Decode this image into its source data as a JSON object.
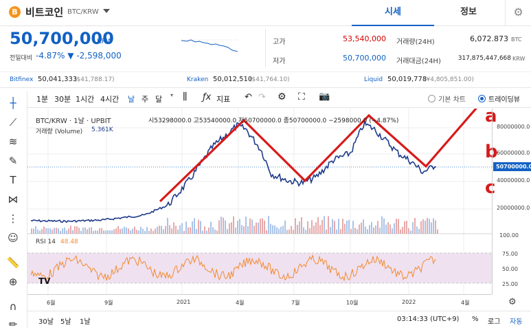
{
  "header": {
    "coin_icon_letter": "B",
    "coin_name": "비트코인",
    "coin_code": "BTC/KRW",
    "tabs": [
      "시세",
      "정보"
    ]
  },
  "price": {
    "value": "50,700,000",
    "unit": "KRW",
    "change_label": "전일대비",
    "change_pct": "-4.87%",
    "change_abs": "▼ -2,598,000"
  },
  "stats": {
    "high_label": "고가",
    "high": "53,540,000",
    "low_label": "저가",
    "low": "50,700,000",
    "vol_label": "거래량(24H)",
    "vol": "6,072.873",
    "vol_unit": "BTC",
    "amt_label": "거래대금(24H)",
    "amt": "317,875,447,668",
    "amt_unit": "KRW"
  },
  "exchanges": [
    {
      "name": "Bitfinex",
      "value": "50,041,333",
      "sub": "($41,788.17)"
    },
    {
      "name": "Kraken",
      "value": "50,012,510",
      "sub": "($41,764.10)"
    },
    {
      "name": "Liquid",
      "value": "50,019,778",
      "sub": "(¥4,805,851.00)"
    }
  ],
  "toolbar": {
    "intervals": [
      "1분",
      "30분",
      "1시간",
      "4시간",
      "날",
      "주",
      "달"
    ],
    "indicator_label": "지표",
    "basic_chart": "기본 차트",
    "tradingview": "트레이딩뷰"
  },
  "legend": {
    "symbol": "BTC/KRW · 1날 · UPBIT",
    "ohlc": "시53298000.0 고53540000.0 저50700000.0 종50700000.0 −2598000.0 (−4.87%)",
    "volume": "거래량 (Volume)",
    "volume_val": "5.361K",
    "rsi_label": "RSI 14",
    "rsi_val": "48.48"
  },
  "price_axis": [
    "80000000.0",
    "60000000.0",
    "40000000.0",
    "20000000.0"
  ],
  "price_tag": "50700000.0",
  "rsi_axis": [
    "100.00",
    "75.00",
    "50.00",
    "25.00"
  ],
  "x_axis": [
    "6월",
    "9월",
    "2021",
    "4월",
    "7월",
    "10월",
    "2022",
    "4월"
  ],
  "annotations": {
    "a": "a",
    "b": "b",
    "c": "c"
  },
  "bottom": {
    "ranges": [
      "30날",
      "5날",
      "1날"
    ],
    "time": "03:14:33 (UTC+9)",
    "pct": "%",
    "log": "로그",
    "auto": "자동"
  },
  "colors": {
    "accent": "#1261c4",
    "up": "#d60000",
    "rsi": "#f28a30",
    "annotation": "#d71a1a"
  }
}
